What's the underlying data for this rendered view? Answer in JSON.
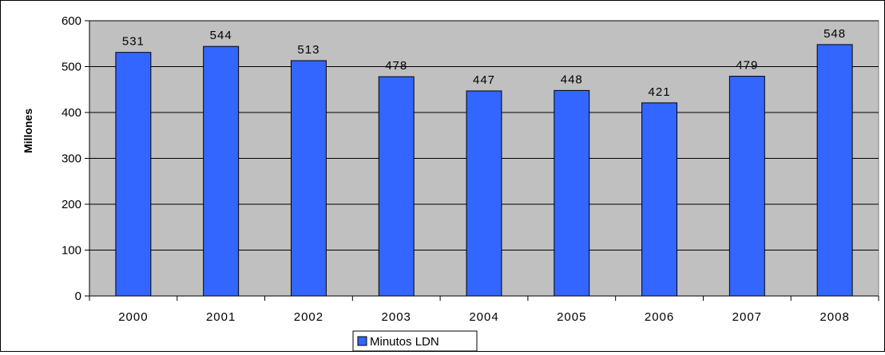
{
  "chart_data": {
    "type": "bar",
    "categories": [
      "2000",
      "2001",
      "2002",
      "2003",
      "2004",
      "2005",
      "2006",
      "2007",
      "2008"
    ],
    "series": [
      {
        "name": "Minutos LDN",
        "values": [
          531,
          544,
          513,
          478,
          447,
          448,
          421,
          479,
          548
        ]
      }
    ],
    "data_labels": [
      "531",
      "544",
      "513",
      "478",
      "447",
      "448",
      "421",
      "479",
      "548"
    ],
    "ylabel": "Millones",
    "ylim": [
      0,
      600
    ],
    "yticks": [
      0,
      100,
      200,
      300,
      400,
      500,
      600
    ],
    "ytick_labels": [
      "0",
      "100",
      "200",
      "300",
      "400",
      "500",
      "600"
    ],
    "grid": true,
    "legend_position": "bottom",
    "colors": {
      "bar_fill": "#3366ff",
      "plot_background": "#c0c0c0",
      "gridline": "#000000"
    }
  }
}
